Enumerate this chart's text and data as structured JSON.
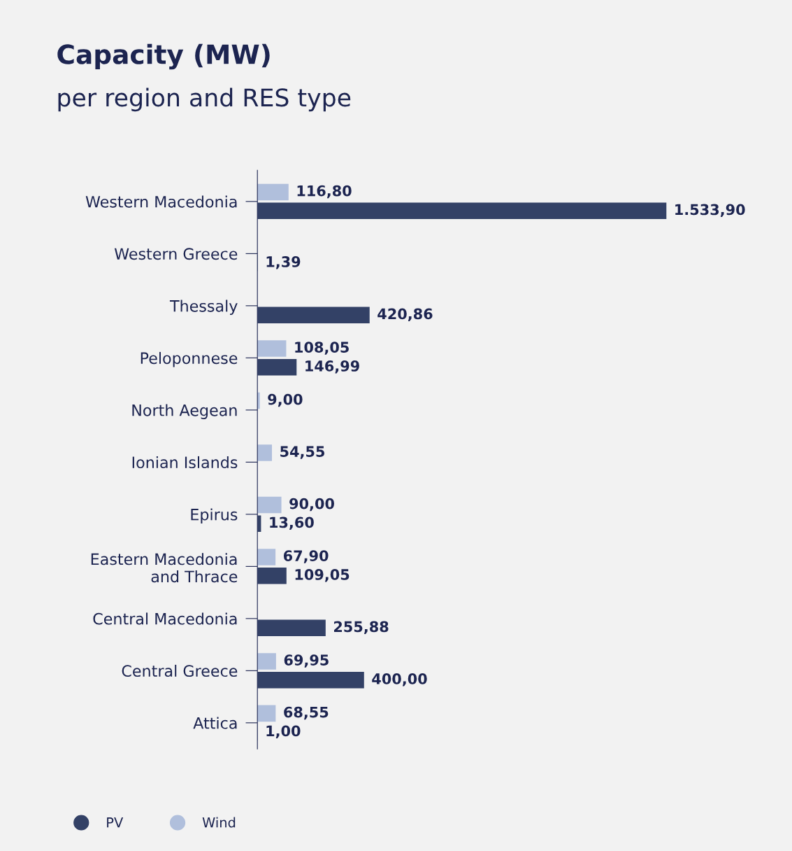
{
  "chart_data": {
    "type": "bar",
    "orientation": "horizontal",
    "title": "Capacity (MW)",
    "subtitle": "per region and RES type",
    "categories": [
      "Western Macedonia",
      "Western Greece",
      "Thessaly",
      "Peloponnese",
      "North Aegean",
      "Ionian Islands",
      "Epirus",
      "Eastern Macedonia\nand Thrace",
      "Central Macedonia",
      "Central Greece",
      "Attica"
    ],
    "series": [
      {
        "name": "PV",
        "color": "#334166",
        "values": [
          1533.9,
          1.39,
          420.86,
          146.99,
          null,
          null,
          13.6,
          109.05,
          255.88,
          400.0,
          1.0
        ],
        "value_labels": [
          "1.533,90",
          "1,39",
          "420,86",
          "146,99",
          null,
          null,
          "13,60",
          "109,05",
          "255,88",
          "400,00",
          "1,00"
        ]
      },
      {
        "name": "Wind",
        "color": "#b0bfdc",
        "values": [
          116.8,
          null,
          null,
          108.05,
          9.0,
          54.55,
          90.0,
          67.9,
          null,
          69.95,
          68.55
        ],
        "value_labels": [
          "116,80",
          null,
          null,
          "108,05",
          "9,00",
          "54,55",
          "90,00",
          "67,90",
          null,
          "69,95",
          "68,55"
        ]
      }
    ],
    "legend": "bottom left",
    "marker": "circle",
    "grid": false
  }
}
